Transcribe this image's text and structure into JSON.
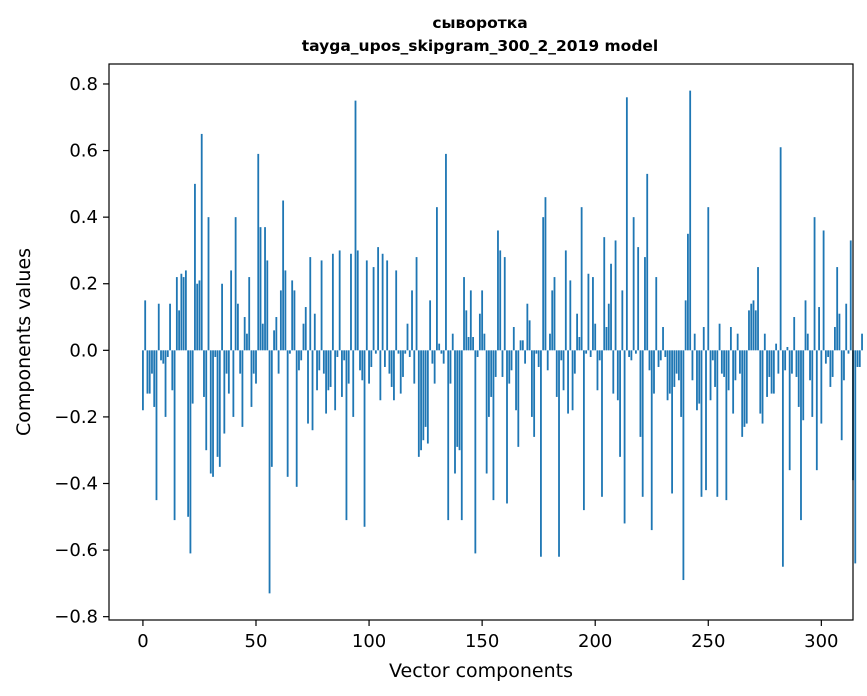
{
  "chart_data": {
    "type": "bar",
    "title": "сыворотка",
    "subtitle": "tayga_upos_skipgram_300_2_2019 model",
    "xlabel": "Vector components",
    "ylabel": "Components values",
    "xlim": [
      -15,
      314
    ],
    "ylim": [
      -0.81,
      0.86
    ],
    "xticks": [
      0,
      50,
      100,
      150,
      200,
      250,
      300
    ],
    "xtick_labels": [
      "0",
      "50",
      "100",
      "150",
      "200",
      "250",
      "300"
    ],
    "yticks": [
      -0.8,
      -0.6,
      -0.4,
      -0.2,
      0.0,
      0.2,
      0.4,
      0.6,
      0.8
    ],
    "ytick_labels": [
      "−0.8",
      "−0.6",
      "−0.4",
      "−0.2",
      "0.0",
      "0.2",
      "0.4",
      "0.6",
      "0.8"
    ],
    "grid": false,
    "bar_color": "#1f77b4",
    "series": [
      {
        "values": [
          -0.18,
          0.15,
          -0.13,
          -0.13,
          -0.07,
          -0.17,
          -0.45,
          0.14,
          -0.03,
          -0.04,
          -0.2,
          -0.02,
          0.14,
          -0.12,
          -0.51,
          0.22,
          0.12,
          0.23,
          0.22,
          0.24,
          -0.5,
          -0.61,
          -0.16,
          0.5,
          0.2,
          0.21,
          0.65,
          -0.14,
          -0.3,
          0.4,
          -0.37,
          -0.38,
          -0.02,
          -0.32,
          -0.35,
          0.2,
          -0.25,
          -0.07,
          -0.13,
          0.24,
          -0.2,
          0.4,
          0.14,
          -0.07,
          -0.23,
          0.1,
          0.05,
          0.22,
          -0.17,
          -0.07,
          -0.1,
          0.59,
          0.37,
          0.08,
          0.37,
          0.27,
          -0.73,
          -0.35,
          0.06,
          0.1,
          -0.07,
          0.18,
          0.45,
          0.24,
          -0.38,
          -0.01,
          0.21,
          0.18,
          -0.41,
          -0.06,
          -0.03,
          0.08,
          0.13,
          -0.22,
          0.28,
          -0.24,
          0.11,
          -0.12,
          -0.06,
          0.27,
          -0.07,
          -0.19,
          -0.12,
          -0.11,
          0.29,
          -0.18,
          -0.02,
          0.3,
          -0.14,
          -0.03,
          -0.51,
          -0.1,
          0.29,
          -0.2,
          0.75,
          0.3,
          -0.06,
          -0.09,
          -0.53,
          0.27,
          -0.1,
          -0.05,
          0.25,
          -0.01,
          0.31,
          -0.15,
          0.29,
          -0.05,
          0.27,
          -0.07,
          -0.11,
          -0.15,
          0.24,
          -0.01,
          -0.13,
          -0.08,
          -0.01,
          0.08,
          -0.02,
          0.18,
          -0.1,
          0.28,
          -0.32,
          -0.3,
          -0.27,
          -0.23,
          -0.28,
          0.15,
          -0.04,
          -0.1,
          0.43,
          0.02,
          -0.01,
          -0.04,
          0.59,
          -0.51,
          -0.1,
          0.05,
          -0.37,
          -0.29,
          -0.3,
          -0.51,
          0.22,
          0.12,
          0.04,
          0.18,
          0.04,
          -0.61,
          -0.02,
          0.11,
          0.18,
          0.05,
          -0.37,
          -0.2,
          -0.14,
          -0.45,
          -0.08,
          0.36,
          0.3,
          -0.08,
          0.28,
          -0.46,
          -0.1,
          -0.06,
          0.07,
          -0.18,
          -0.29,
          0.03,
          0.03,
          -0.04,
          0.14,
          0.09,
          -0.2,
          -0.26,
          -0.01,
          -0.05,
          -0.62,
          0.4,
          0.46,
          -0.06,
          0.05,
          0.18,
          0.22,
          -0.14,
          -0.62,
          -0.03,
          -0.12,
          0.3,
          -0.19,
          0.21,
          -0.18,
          -0.07,
          0.11,
          0.04,
          0.43,
          -0.48,
          -0.01,
          0.23,
          -0.02,
          0.22,
          0.08,
          -0.12,
          -0.03,
          -0.44,
          0.34,
          0.07,
          0.14,
          0.26,
          -0.13,
          0.33,
          -0.15,
          -0.32,
          0.18,
          -0.52,
          0.76,
          -0.02,
          -0.03,
          0.4,
          -0.01,
          0.31,
          -0.26,
          -0.44,
          0.28,
          0.53,
          -0.06,
          -0.54,
          -0.13,
          0.22,
          -0.05,
          -0.03,
          0.07,
          -0.02,
          -0.15,
          -0.13,
          -0.43,
          -0.11,
          -0.07,
          -0.09,
          -0.2,
          -0.69,
          0.15,
          0.35,
          0.78,
          -0.09,
          0.05,
          -0.18,
          -0.16,
          -0.44,
          0.07,
          -0.42,
          0.43,
          -0.15,
          -0.03,
          -0.11,
          -0.44,
          0.08,
          -0.07,
          -0.08,
          -0.45,
          -0.12,
          0.07,
          -0.19,
          -0.09,
          0.05,
          -0.07,
          -0.26,
          -0.23,
          -0.22,
          0.12,
          0.14,
          0.15,
          0.12,
          0.25,
          -0.19,
          -0.22,
          0.05,
          -0.14,
          -0.08,
          -0.13,
          -0.13,
          0.02,
          -0.07,
          0.61,
          -0.65,
          -0.06,
          0.01,
          -0.36,
          -0.07,
          0.1,
          -0.08,
          -0.17,
          -0.51,
          -0.21,
          0.15,
          0.05,
          -0.09,
          -0.2,
          0.4,
          -0.36,
          0.13,
          -0.22,
          0.36,
          -0.04,
          -0.02,
          -0.11,
          -0.08,
          0.07,
          0.25,
          0.11,
          -0.27,
          -0.09,
          0.14,
          -0.01,
          0.33,
          -0.39,
          -0.64,
          -0.05,
          -0.05,
          0.05
        ]
      }
    ]
  }
}
